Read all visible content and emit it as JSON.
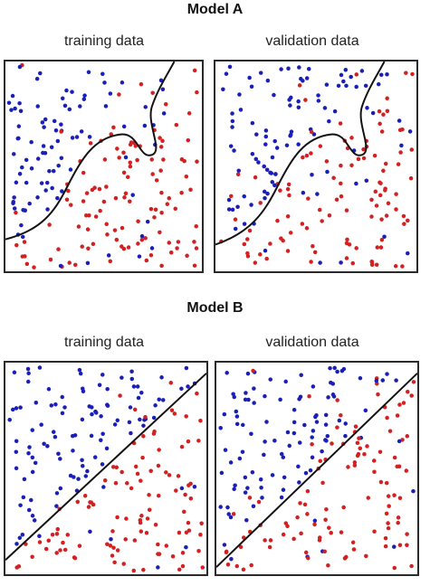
{
  "model_a": {
    "title": "Model A",
    "left_label": "training data",
    "right_label": "validation data"
  },
  "model_b": {
    "title": "Model B",
    "left_label": "training data",
    "right_label": "validation data"
  },
  "colors": {
    "class_blue": "#1a1fb8",
    "class_red": "#d42020",
    "boundary": "#111111"
  }
}
